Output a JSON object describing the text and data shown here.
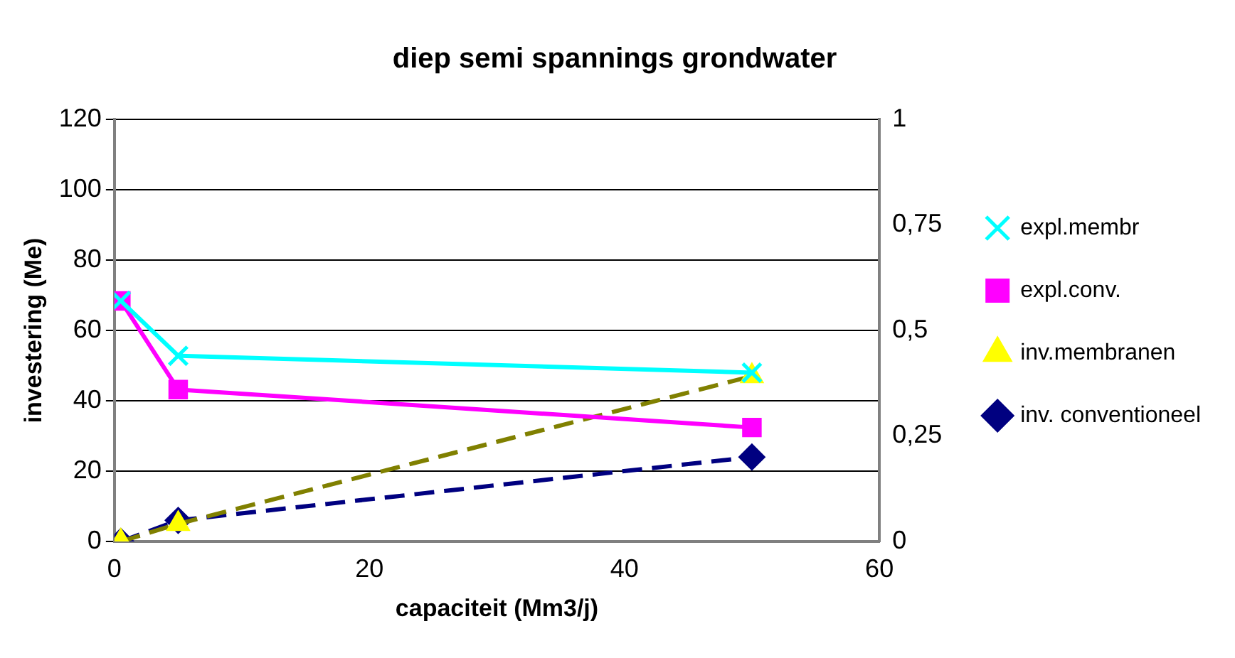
{
  "chart_data": {
    "type": "line",
    "title": "diep semi spannings grondwater",
    "xlabel": "capaciteit (Mm3/j)",
    "ylabel": "investering (Me)",
    "x": [
      0.5,
      5,
      50
    ],
    "series": [
      {
        "name": "inv. conventioneel",
        "color": "#000080",
        "values": [
          0,
          6,
          24
        ],
        "marker": "diamond",
        "line_style": "dashed"
      },
      {
        "name": "inv.membranen",
        "color": "#808000",
        "values": [
          0,
          5,
          47
        ],
        "marker": "triangle",
        "line_style": "dashed"
      },
      {
        "name": "expl.conv.",
        "color": "#ff00ff",
        "values": [
          0.57,
          0.36,
          0.27
        ],
        "marker": "square",
        "line_style": "solid",
        "axis": "y2"
      },
      {
        "name": "expl.membr",
        "color": "#00ffff",
        "values": [
          0.57,
          0.44,
          0.4
        ],
        "marker": "cross",
        "line_style": "solid",
        "axis": "y2"
      }
    ],
    "xlim": [
      0,
      60
    ],
    "xticks": [
      0,
      20,
      40,
      60
    ],
    "ylim": [
      0,
      120
    ],
    "yticks": [
      0,
      20,
      40,
      60,
      80,
      100,
      120
    ],
    "y2lim": [
      0,
      1
    ],
    "y2ticks": [
      0,
      {
        "value": 0.25,
        "label": "0,25"
      },
      {
        "value": 0.5,
        "label": "0,5"
      },
      {
        "value": 0.75,
        "label": "0,75"
      },
      1
    ],
    "grid": "y",
    "legend": "right"
  }
}
